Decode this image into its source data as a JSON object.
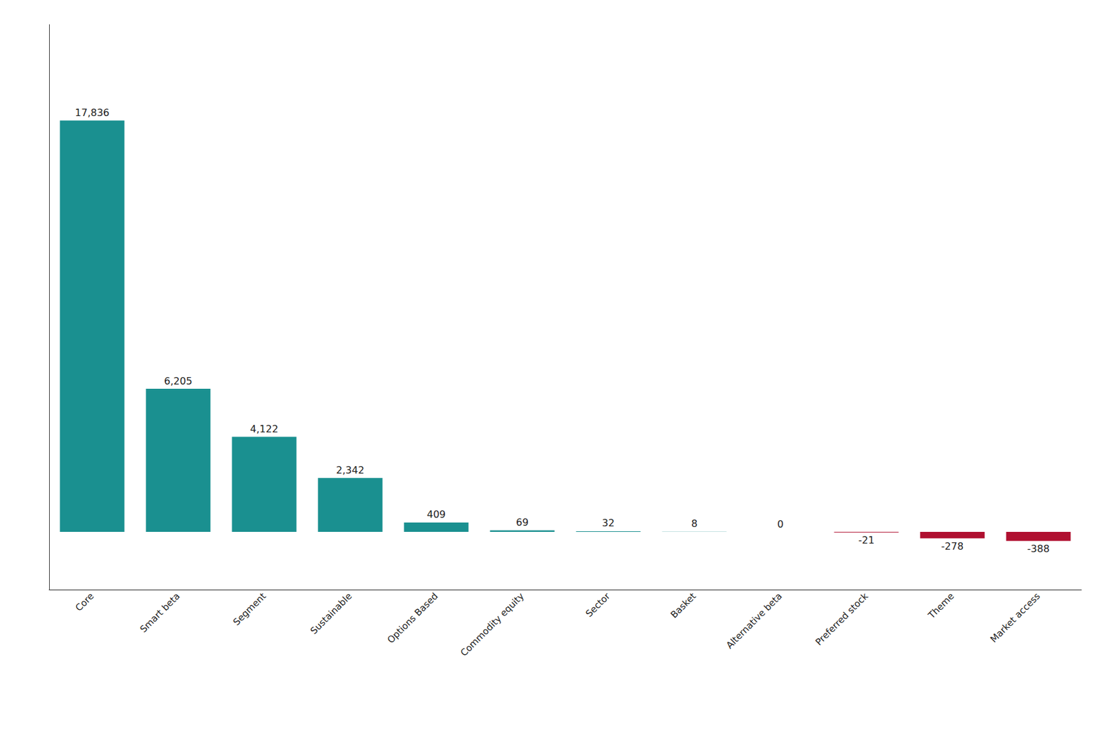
{
  "chart_data": {
    "type": "bar",
    "categories": [
      "Core",
      "Smart beta",
      "Segment",
      "Sustainable",
      "Options Based",
      "Commodity equity",
      "Sector",
      "Basket",
      "Alternative beta",
      "Preferred stock",
      "Theme",
      "Market access"
    ],
    "values": [
      17836,
      6205,
      4122,
      2342,
      409,
      69,
      32,
      8,
      0,
      -21,
      -278,
      -388
    ],
    "value_labels": [
      "17,836",
      "6,205",
      "4,122",
      "2,342",
      "409",
      "69",
      "32",
      "8",
      "0",
      "-21",
      "-278",
      "-388"
    ],
    "colors": [
      "#1a9090",
      "#1a9090",
      "#1a9090",
      "#1a9090",
      "#1a9090",
      "#1a9090",
      "#1a9090",
      "#1a9090",
      "#1a9090",
      "#b01030",
      "#b01030",
      "#b01030"
    ],
    "ylim": [
      -2500,
      22000
    ],
    "data_labels": true,
    "tick_labels": "x",
    "grid": false
  }
}
